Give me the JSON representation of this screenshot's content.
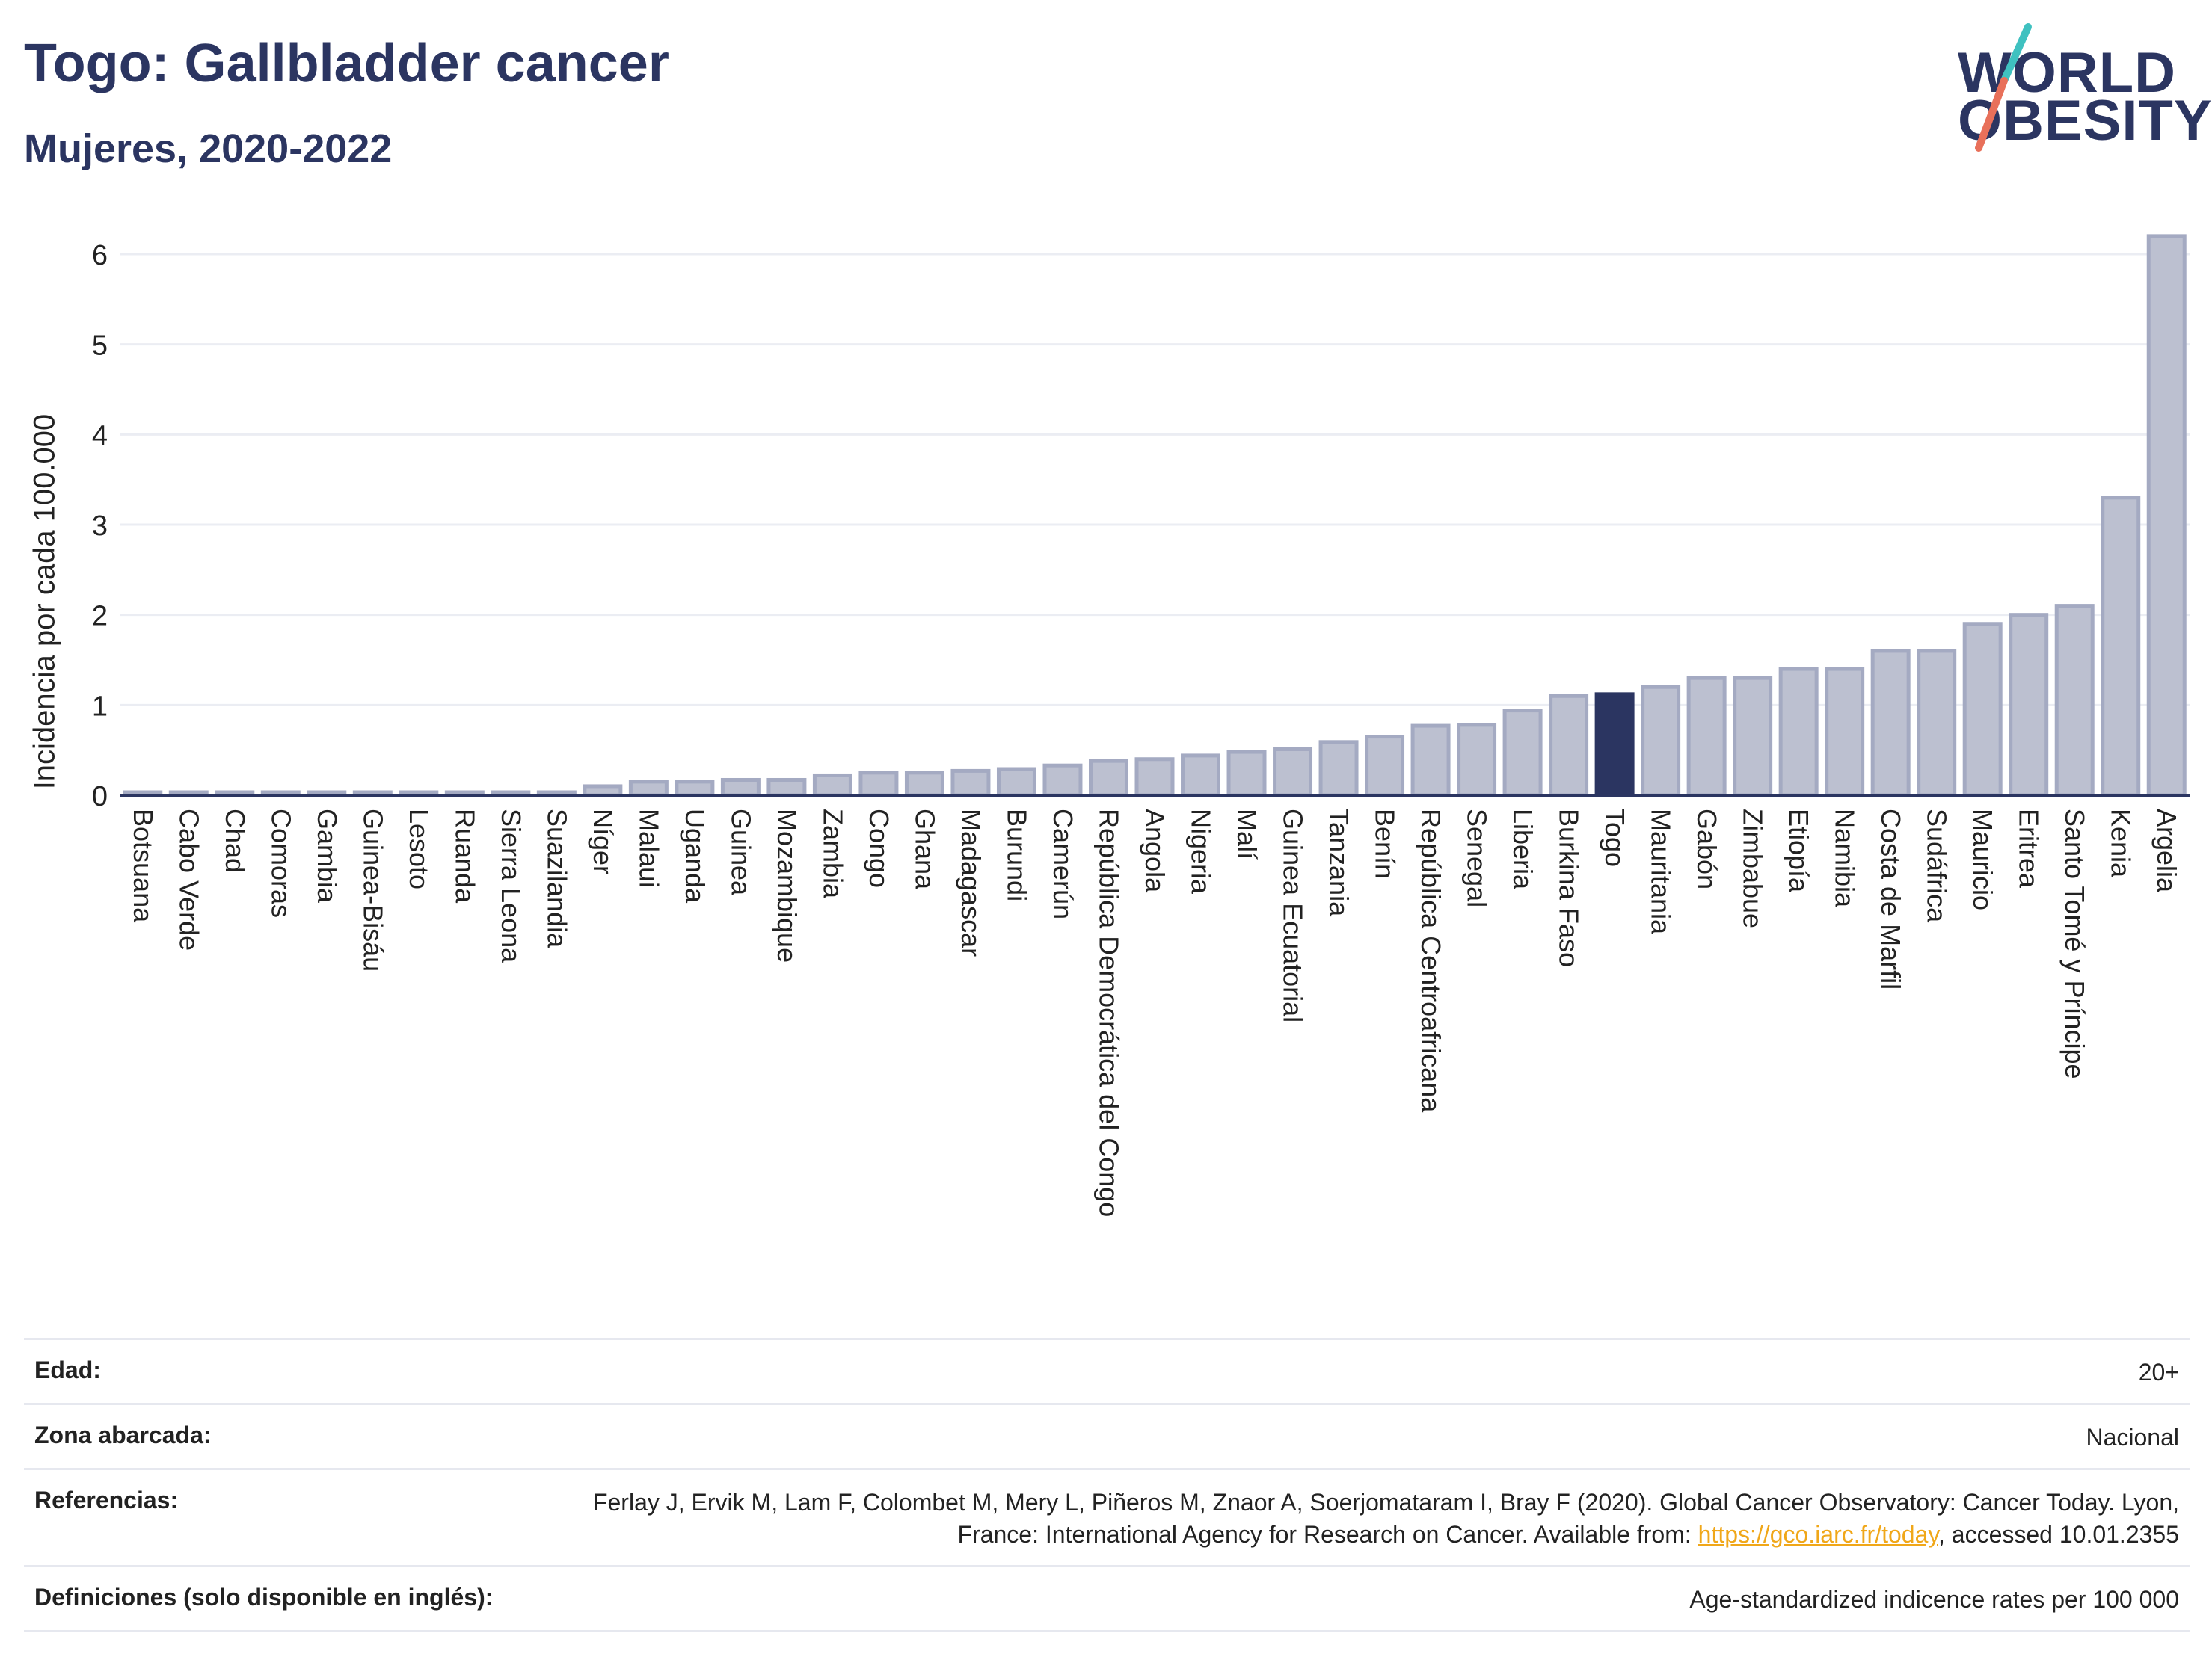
{
  "header": {
    "title": "Togo: Gallbladder cancer",
    "subtitle": "Mujeres, 2020-2022"
  },
  "logo": {
    "line1": "WORLD",
    "line2": "OBESITY"
  },
  "colors": {
    "highlight": "#2b3561",
    "bar_fill": "#bcc0d0",
    "bar_stroke": "#a4aac2",
    "grid": "#ebedf3",
    "link": "#f0a719",
    "logo_teal": "#3fc1c0",
    "logo_coral": "#e8705a"
  },
  "chart_data": {
    "type": "bar",
    "ylabel": "Incidencia por cada 100.000",
    "xlabel": "",
    "ylim": [
      0,
      6.5
    ],
    "yticks": [
      0,
      1,
      2,
      3,
      4,
      5,
      6
    ],
    "grid": true,
    "highlight": "Togo",
    "categories": [
      "Botsuana",
      "Cabo Verde",
      "Chad",
      "Comoras",
      "Gambia",
      "Guinea-Bisáu",
      "Lesoto",
      "Ruanda",
      "Sierra Leona",
      "Suazilandia",
      "Níger",
      "Malaui",
      "Uganda",
      "Guinea",
      "Mozambique",
      "Zambia",
      "Congo",
      "Ghana",
      "Madagascar",
      "Burundi",
      "Camerún",
      "República Democrática del Congo",
      "Angola",
      "Nigeria",
      "Malí",
      "Guinea Ecuatorial",
      "Tanzania",
      "Benín",
      "República Centroafricana",
      "Senegal",
      "Liberia",
      "Burkina Faso",
      "Togo",
      "Mauritania",
      "Gabón",
      "Zimbabue",
      "Etiopía",
      "Namibia",
      "Costa de Marfil",
      "Sudáfrica",
      "Mauricio",
      "Eritrea",
      "Santo Tomé y Príncipe",
      "Kenia",
      "Argelia"
    ],
    "values": [
      0.02,
      0.02,
      0.02,
      0.02,
      0.02,
      0.02,
      0.02,
      0.02,
      0.02,
      0.02,
      0.1,
      0.15,
      0.15,
      0.17,
      0.17,
      0.22,
      0.25,
      0.25,
      0.27,
      0.29,
      0.33,
      0.38,
      0.4,
      0.44,
      0.48,
      0.51,
      0.59,
      0.65,
      0.77,
      0.78,
      0.94,
      1.1,
      1.12,
      1.2,
      1.3,
      1.3,
      1.4,
      1.4,
      1.6,
      1.6,
      1.9,
      2.0,
      2.1,
      3.3,
      6.2
    ]
  },
  "info": {
    "rows": [
      {
        "label": "Edad:",
        "value": "20+"
      },
      {
        "label": "Zona abarcada:",
        "value": "Nacional"
      },
      {
        "label": "Referencias:",
        "value_pre": "Ferlay J, Ervik M, Lam F, Colombet M, Mery L, Piñeros M, Znaor A, Soerjomataram I, Bray F (2020). Global Cancer Observatory: Cancer Today. Lyon, France: International Agency for Research on Cancer. Available from: ",
        "link": "https://gco.iarc.fr/today",
        "value_post": ", accessed 10.01.2355"
      },
      {
        "label": "Definiciones (solo disponible en inglés):",
        "value": "Age-standardized indicence rates per 100 000"
      }
    ]
  }
}
